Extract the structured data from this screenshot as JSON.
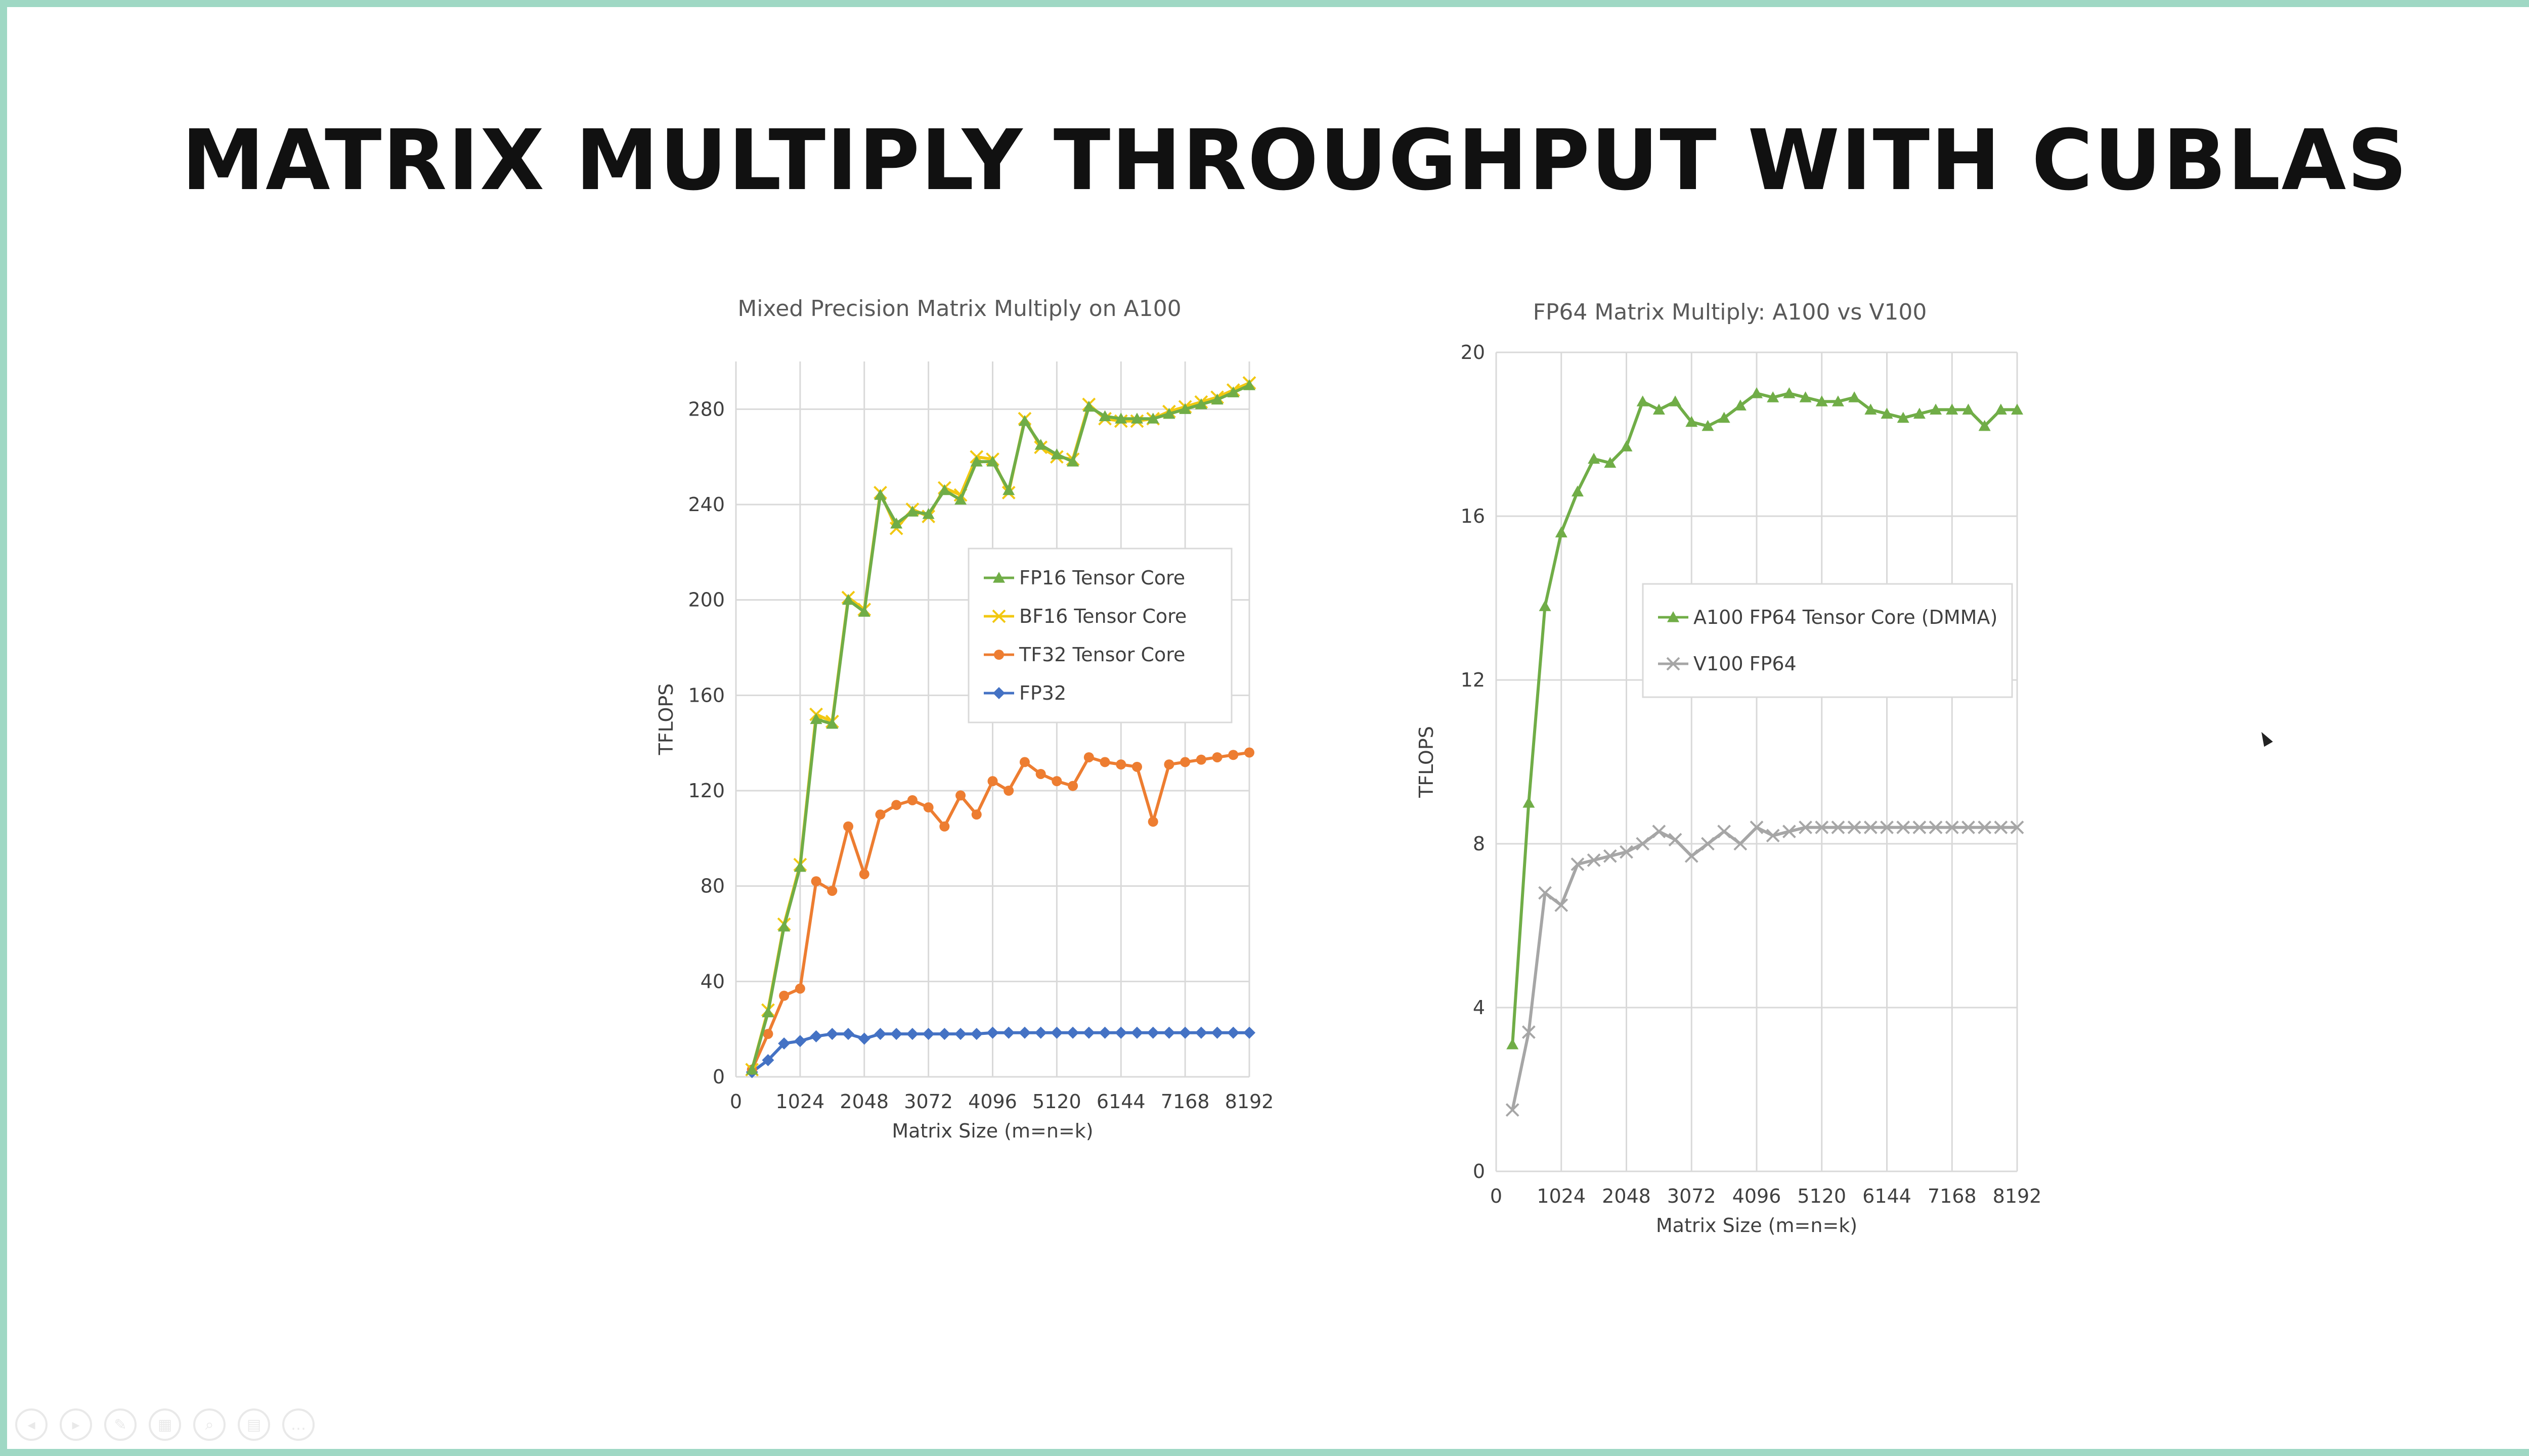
{
  "slide": {
    "title": "MATRIX MULTIPLY THROUGHPUT WITH CUBLAS"
  },
  "toolbar": {
    "icons": [
      "previous-icon",
      "play-icon",
      "pen-icon",
      "slides-icon",
      "zoom-icon",
      "subtitles-icon",
      "more-icon"
    ],
    "glyphs": [
      "◂",
      "▸",
      "✎",
      "▦",
      "⌕",
      "▤",
      "…"
    ]
  },
  "chart_data": [
    {
      "type": "line",
      "title": "Mixed Precision Matrix Multiply on A100",
      "xlabel": "Matrix Size (m=n=k)",
      "ylabel": "TFLOPS",
      "xlim": [
        0,
        8192
      ],
      "ylim": [
        0,
        300
      ],
      "xticks": [
        0,
        1024,
        2048,
        3072,
        4096,
        5120,
        6144,
        7168,
        8192
      ],
      "xtick_labels": [
        "0",
        "1024",
        "2048",
        "3072",
        "4096",
        "5120",
        "6144",
        "7168",
        "8192"
      ],
      "yticks": [
        0,
        40,
        80,
        120,
        160,
        200,
        240,
        280
      ],
      "ytick_labels": [
        "0",
        "40",
        "80",
        "120",
        "160",
        "200",
        "240",
        "280"
      ],
      "grid": true,
      "legend_position": "middle-right",
      "x": [
        256,
        512,
        768,
        1024,
        1280,
        1536,
        1792,
        2048,
        2304,
        2560,
        2816,
        3072,
        3328,
        3584,
        3840,
        4096,
        4352,
        4608,
        4864,
        5120,
        5376,
        5632,
        5888,
        6144,
        6400,
        6656,
        6912,
        7168,
        7424,
        7680,
        7936,
        8192
      ],
      "series": [
        {
          "name": "FP16 Tensor Core",
          "color": "#70ad47",
          "marker": "triangle",
          "values": [
            3,
            27,
            63,
            88,
            150,
            148,
            200,
            195,
            244,
            232,
            237,
            236,
            246,
            242,
            258,
            258,
            246,
            275,
            265,
            261,
            258,
            281,
            277,
            276,
            276,
            276,
            278,
            280,
            282,
            284,
            287,
            290
          ]
        },
        {
          "name": "BF16 Tensor Core",
          "color": "#f2c811",
          "marker": "x",
          "values": [
            3,
            28,
            64,
            89,
            152,
            149,
            201,
            196,
            245,
            230,
            238,
            235,
            247,
            244,
            260,
            259,
            245,
            276,
            264,
            260,
            259,
            282,
            276,
            275,
            275,
            276,
            279,
            281,
            283,
            285,
            288,
            291
          ]
        },
        {
          "name": "TF32 Tensor Core",
          "color": "#ed7d31",
          "marker": "circle",
          "values": [
            3,
            18,
            34,
            37,
            82,
            78,
            105,
            85,
            110,
            114,
            116,
            113,
            105,
            118,
            110,
            124,
            120,
            132,
            127,
            124,
            122,
            134,
            132,
            131,
            130,
            107,
            131,
            132,
            133,
            134,
            135,
            136
          ]
        },
        {
          "name": "FP32",
          "color": "#4472c4",
          "marker": "diamond",
          "values": [
            2,
            7,
            14,
            15,
            17,
            18,
            18,
            16,
            18,
            18,
            18,
            18,
            18,
            18,
            18,
            18.5,
            18.5,
            18.5,
            18.5,
            18.5,
            18.5,
            18.5,
            18.5,
            18.5,
            18.5,
            18.5,
            18.5,
            18.5,
            18.5,
            18.5,
            18.5,
            18.5
          ]
        }
      ]
    },
    {
      "type": "line",
      "title": "FP64 Matrix Multiply: A100 vs V100",
      "xlabel": "Matrix Size (m=n=k)",
      "ylabel": "TFLOPS",
      "xlim": [
        0,
        8192
      ],
      "ylim": [
        0,
        20
      ],
      "xticks": [
        0,
        1024,
        2048,
        3072,
        4096,
        5120,
        6144,
        7168,
        8192
      ],
      "xtick_labels": [
        "0",
        "1024",
        "2048",
        "3072",
        "4096",
        "5120",
        "6144",
        "7168",
        "8192"
      ],
      "yticks": [
        0,
        4,
        8,
        12,
        16,
        20
      ],
      "ytick_labels": [
        "0",
        "4",
        "8",
        "12",
        "16",
        "20"
      ],
      "grid": true,
      "legend_position": "middle-right",
      "x": [
        256,
        512,
        768,
        1024,
        1280,
        1536,
        1792,
        2048,
        2304,
        2560,
        2816,
        3072,
        3328,
        3584,
        3840,
        4096,
        4352,
        4608,
        4864,
        5120,
        5376,
        5632,
        5888,
        6144,
        6400,
        6656,
        6912,
        7168,
        7424,
        7680,
        7936,
        8192
      ],
      "series": [
        {
          "name": "A100 FP64 Tensor Core (DMMA)",
          "color": "#70ad47",
          "marker": "triangle",
          "values": [
            3.1,
            9.0,
            13.8,
            15.6,
            16.6,
            17.4,
            17.3,
            17.7,
            18.8,
            18.6,
            18.8,
            18.3,
            18.2,
            18.4,
            18.7,
            19.0,
            18.9,
            19.0,
            18.9,
            18.8,
            18.8,
            18.9,
            18.6,
            18.5,
            18.4,
            18.5,
            18.6,
            18.6,
            18.6,
            18.2,
            18.6,
            18.6
          ]
        },
        {
          "name": "V100 FP64",
          "color": "#a6a6a6",
          "marker": "x",
          "values": [
            1.5,
            3.4,
            6.8,
            6.5,
            7.5,
            7.6,
            7.7,
            7.8,
            8.0,
            8.3,
            8.1,
            7.7,
            8.0,
            8.3,
            8.0,
            8.4,
            8.2,
            8.3,
            8.4,
            8.4,
            8.4,
            8.4,
            8.4,
            8.4,
            8.4,
            8.4,
            8.4,
            8.4,
            8.4,
            8.4,
            8.4,
            8.4
          ]
        }
      ]
    }
  ]
}
